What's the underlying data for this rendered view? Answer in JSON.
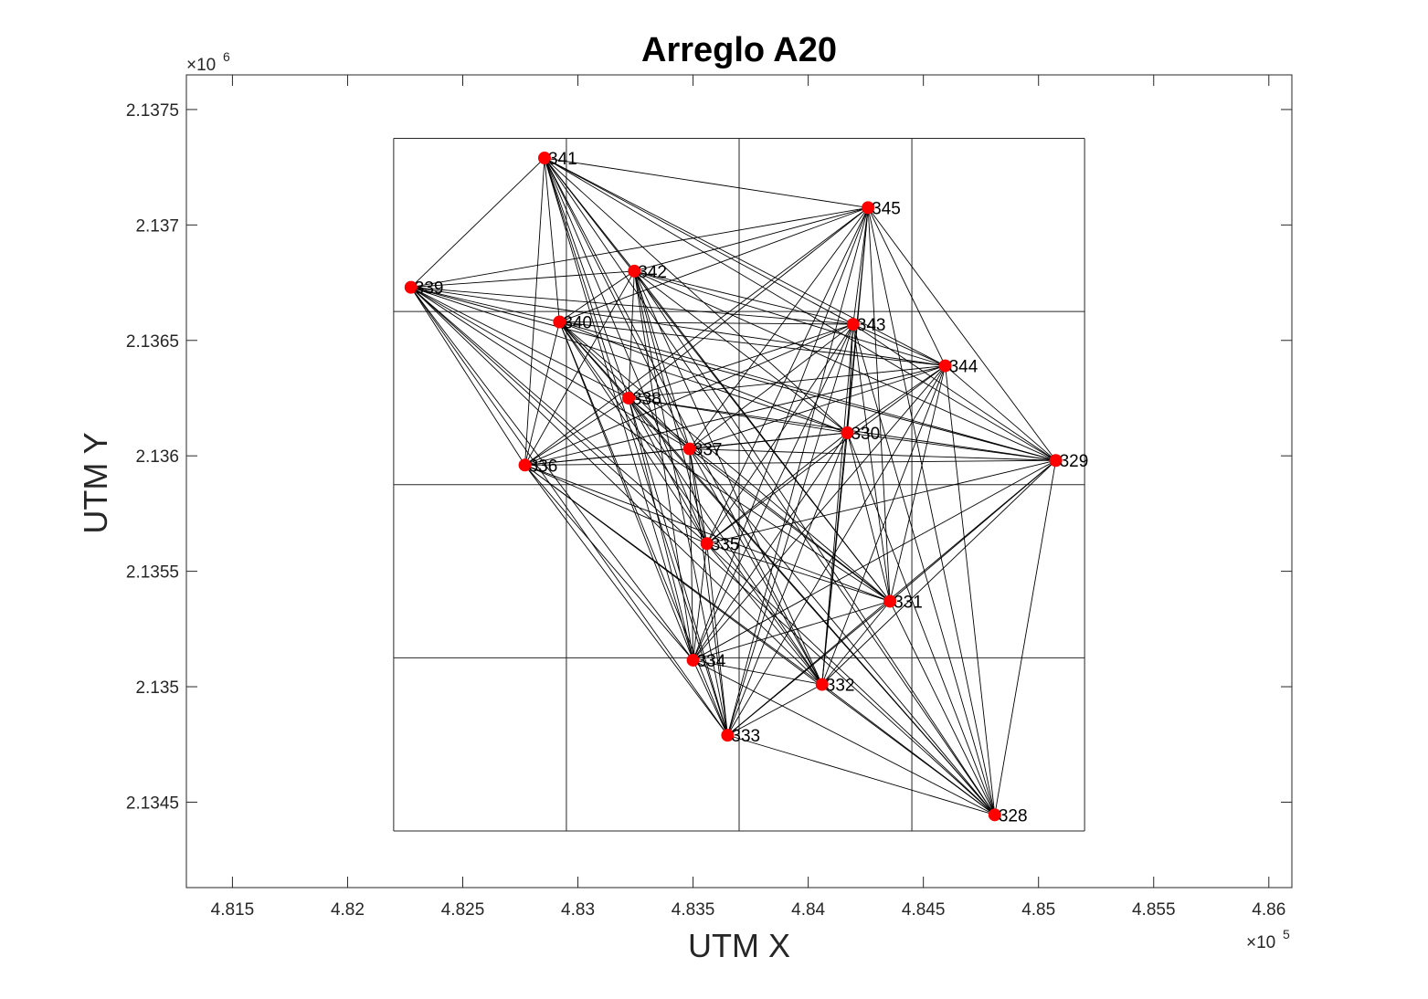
{
  "chart_data": {
    "type": "scatter",
    "title": "Arreglo A20",
    "xlabel": "UTM X",
    "ylabel": "UTM Y",
    "x_exponent_label": "×10",
    "x_exponent_power": "5",
    "y_exponent_label": "×10",
    "y_exponent_power": "6",
    "xlim": [
      481300,
      486100
    ],
    "ylim": [
      2134130,
      2137650
    ],
    "x_ticks": [
      481500,
      482000,
      482500,
      483000,
      483500,
      484000,
      484500,
      485000,
      485500,
      486000
    ],
    "x_tick_labels": [
      "4.815",
      "4.82",
      "4.825",
      "4.83",
      "4.835",
      "4.84",
      "4.845",
      "4.85",
      "4.855",
      "4.86"
    ],
    "y_ticks": [
      2134500,
      2135000,
      2135500,
      2136000,
      2136500,
      2137000,
      2137500
    ],
    "y_tick_labels": [
      "2.1345",
      "2.135",
      "2.1355",
      "2.136",
      "2.1365",
      "2.137",
      "2.1375"
    ],
    "grid": {
      "x_lines": [
        482200,
        482950,
        483700,
        484450,
        485200
      ],
      "y_lines": [
        2134375,
        2135125,
        2135875,
        2136625,
        2137375
      ]
    },
    "marker_color": "#ff0000",
    "line_color": "#000000",
    "connections": "all pairs",
    "stations": [
      {
        "name": "328",
        "x": 484810,
        "y": 2134445
      },
      {
        "name": "329",
        "x": 485075,
        "y": 2135980
      },
      {
        "name": "330",
        "x": 484170,
        "y": 2136100
      },
      {
        "name": "331",
        "x": 484355,
        "y": 2135370
      },
      {
        "name": "332",
        "x": 484060,
        "y": 2135010
      },
      {
        "name": "333",
        "x": 483650,
        "y": 2134790
      },
      {
        "name": "334",
        "x": 483500,
        "y": 2135115
      },
      {
        "name": "335",
        "x": 483560,
        "y": 2135620
      },
      {
        "name": "336",
        "x": 482770,
        "y": 2135960
      },
      {
        "name": "337",
        "x": 483485,
        "y": 2136030
      },
      {
        "name": "338",
        "x": 483220,
        "y": 2136250
      },
      {
        "name": "339",
        "x": 482275,
        "y": 2136730
      },
      {
        "name": "340",
        "x": 482920,
        "y": 2136580
      },
      {
        "name": "341",
        "x": 482855,
        "y": 2137290
      },
      {
        "name": "342",
        "x": 483245,
        "y": 2136800
      },
      {
        "name": "343",
        "x": 484195,
        "y": 2136570
      },
      {
        "name": "344",
        "x": 484595,
        "y": 2136390
      },
      {
        "name": "345",
        "x": 484260,
        "y": 2137075
      }
    ]
  }
}
